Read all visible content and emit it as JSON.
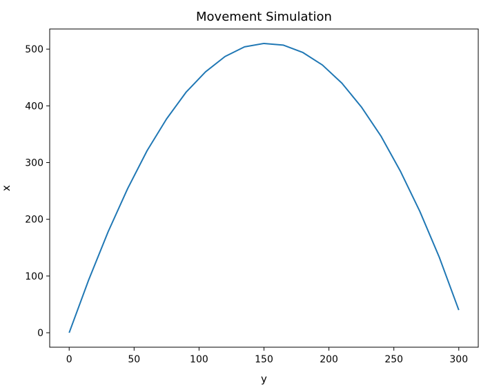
{
  "chart_data": {
    "type": "line",
    "title": "Movement Simulation",
    "xlabel": "y",
    "ylabel": "x",
    "xlim": [
      -15,
      315
    ],
    "ylim": [
      -25.5,
      535.5
    ],
    "xticks": [
      0,
      50,
      100,
      150,
      200,
      250,
      300
    ],
    "xtick_labels": [
      "0",
      "50",
      "100",
      "150",
      "200",
      "250",
      "300"
    ],
    "yticks": [
      0,
      100,
      200,
      300,
      400,
      500
    ],
    "ytick_labels": [
      "0",
      "100",
      "200",
      "300",
      "400",
      "500"
    ],
    "grid": false,
    "series": [
      {
        "color": "#1f77b4",
        "x": [
          0,
          15,
          30,
          45,
          60,
          75,
          90,
          105,
          120,
          135,
          150,
          165,
          180,
          195,
          210,
          225,
          240,
          255,
          270,
          285,
          300
        ],
        "y": [
          0,
          93,
          178,
          254,
          321,
          377,
          424,
          460,
          487,
          504,
          510,
          507,
          494,
          472,
          440,
          398,
          347,
          285,
          214,
          133,
          40
        ]
      }
    ]
  }
}
